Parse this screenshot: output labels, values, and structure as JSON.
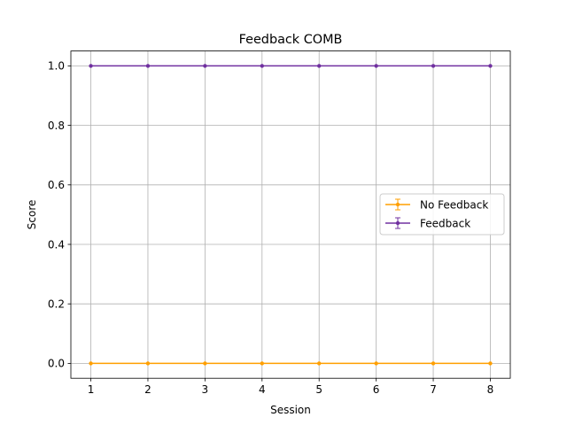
{
  "chart_data": {
    "type": "line",
    "title": "Feedback COMB",
    "xlabel": "Session",
    "ylabel": "Score",
    "x": [
      1,
      2,
      3,
      4,
      5,
      6,
      7,
      8
    ],
    "xlim": [
      0.65,
      8.35
    ],
    "ylim": [
      -0.05,
      1.05
    ],
    "xticks": [
      1,
      2,
      3,
      4,
      5,
      6,
      7,
      8
    ],
    "yticks": [
      0.0,
      0.2,
      0.4,
      0.6,
      0.8,
      1.0
    ],
    "ytick_labels": [
      "0.0",
      "0.2",
      "0.4",
      "0.6",
      "0.8",
      "1.0"
    ],
    "grid": true,
    "legend_position": "center-right",
    "series": [
      {
        "name": "No Feedback",
        "color": "#ff9f00",
        "values": [
          0,
          0,
          0,
          0,
          0,
          0,
          0,
          0
        ]
      },
      {
        "name": "Feedback",
        "color": "#7030a0",
        "values": [
          1,
          1,
          1,
          1,
          1,
          1,
          1,
          1
        ]
      }
    ]
  }
}
